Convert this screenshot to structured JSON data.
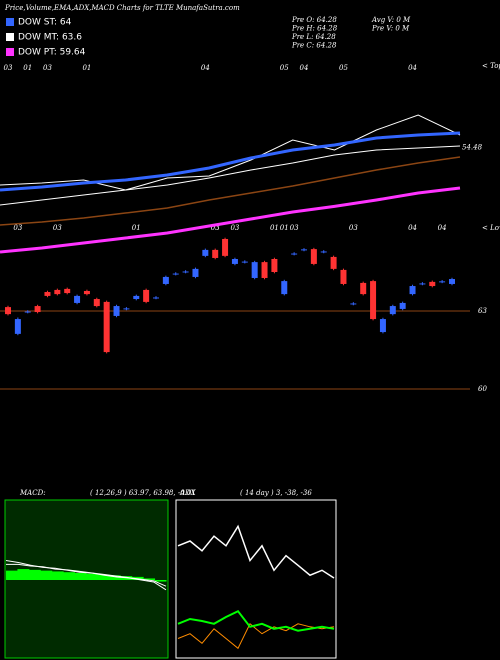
{
  "title": "Price,Volume,EMA,ADX,MACD Charts for TLTE MunafaSutra.com",
  "legend": [
    {
      "label": "DOW ST: 64",
      "color": "#3366ff"
    },
    {
      "label": "DOW MT: 63.6",
      "color": "#ffffff"
    },
    {
      "label": "DOW PT: 59.64",
      "color": "#ff33ff"
    }
  ],
  "info": [
    "Pre  O: 64.28",
    "Pre  H: 64.28",
    "Pre  L: 64.28",
    "Pre  C: 64.28"
  ],
  "info2": [
    "Avg V: 0  M",
    "Pre  V: 0  M"
  ],
  "chart_data": [
    {
      "type": "candlestick",
      "up_color": "#3366ff",
      "down_color": "#ff3333",
      "doji_color": "#ffffff",
      "open": [
        63.15,
        62.12,
        62.96,
        63.19,
        63.73,
        63.81,
        63.85,
        63.31,
        63.77,
        63.46,
        63.35,
        62.81,
        63.08,
        63.46,
        63.81,
        63.5,
        64.04,
        64.42,
        64.5,
        64.31,
        65.12,
        65.35,
        65.77,
        64.81,
        64.88,
        64.27,
        64.88,
        65.0,
        63.65,
        65.19,
        65.35,
        65.38,
        65.27,
        65.08,
        64.58,
        63.27,
        64.08,
        64.15,
        62.19,
        62.88,
        63.08,
        63.65,
        64.04,
        64.12,
        64.12,
        64.04
      ],
      "high": [
        63.2,
        62.75,
        63.03,
        63.24,
        63.78,
        63.86,
        63.9,
        63.63,
        63.82,
        63.51,
        63.4,
        63.24,
        63.15,
        63.63,
        63.86,
        63.57,
        64.36,
        64.49,
        64.57,
        64.67,
        65.4,
        65.4,
        65.82,
        65.05,
        64.95,
        64.93,
        64.93,
        65.05,
        64.2,
        65.26,
        65.42,
        65.43,
        65.34,
        65.13,
        64.63,
        63.34,
        64.13,
        64.2,
        62.74,
        63.24,
        63.36,
        64.01,
        64.11,
        64.17,
        64.19,
        64.28
      ],
      "low": [
        62.83,
        62.07,
        62.91,
        62.91,
        63.53,
        63.6,
        63.64,
        63.26,
        63.6,
        63.14,
        61.37,
        62.76,
        63.03,
        63.41,
        63.3,
        63.45,
        63.99,
        64.37,
        64.45,
        64.26,
        65.07,
        64.99,
        65.07,
        64.76,
        64.83,
        64.22,
        64.22,
        64.45,
        63.6,
        65.14,
        65.3,
        64.76,
        65.22,
        64.57,
        63.99,
        63.22,
        63.6,
        62.64,
        62.14,
        62.83,
        63.03,
        63.6,
        63.99,
        63.91,
        64.07,
        63.99
      ],
      "close": [
        62.88,
        62.69,
        62.98,
        62.96,
        63.58,
        63.65,
        63.69,
        63.58,
        63.65,
        63.19,
        61.42,
        63.19,
        63.1,
        63.58,
        63.35,
        63.52,
        64.31,
        64.44,
        64.52,
        64.62,
        65.35,
        65.04,
        65.12,
        65.0,
        64.9,
        64.88,
        64.27,
        64.5,
        64.15,
        65.21,
        65.37,
        64.81,
        65.29,
        64.62,
        64.04,
        63.29,
        63.65,
        62.69,
        62.69,
        63.19,
        63.31,
        63.96,
        64.06,
        63.96,
        64.14,
        64.23
      ],
      "ylim": [
        57.5,
        66.5
      ],
      "yticks": [
        60,
        63
      ],
      "tops_label": "< Tops",
      "tops": [
        {
          "index": 0,
          "label": "03"
        },
        {
          "index": 2,
          "label": "01"
        },
        {
          "index": 4,
          "label": "03"
        },
        {
          "index": 8,
          "label": "01"
        },
        {
          "index": 20,
          "label": "04"
        },
        {
          "index": 28,
          "label": "05"
        },
        {
          "index": 30,
          "label": "04"
        },
        {
          "index": 34,
          "label": "05"
        },
        {
          "index": 41,
          "label": "04"
        }
      ],
      "lows_label": "< Lows",
      "lows": [
        {
          "index": 1,
          "label": "03"
        },
        {
          "index": 5,
          "label": "03"
        },
        {
          "index": 13,
          "label": "01"
        },
        {
          "index": 21,
          "label": "03"
        },
        {
          "index": 23,
          "label": "03"
        },
        {
          "index": 27,
          "label": "01"
        },
        {
          "index": 28,
          "label": "01"
        },
        {
          "index": 29,
          "label": "03"
        },
        {
          "index": 35,
          "label": "03"
        },
        {
          "index": 41,
          "label": "04"
        },
        {
          "index": 44,
          "label": "04"
        }
      ]
    },
    {
      "type": "line",
      "ylim": [
        46.6,
        60.6
      ],
      "yticks": [
        54.48
      ],
      "series": [
        {
          "color": "#8b4513",
          "width": 1.5,
          "values": [
            49.05,
            49.26,
            49.54,
            49.89,
            50.24,
            50.8,
            51.29,
            51.78,
            52.34,
            52.9,
            53.39,
            53.81
          ]
        },
        {
          "color": "#ff33ff",
          "width": 3,
          "values": [
            47.16,
            47.44,
            47.79,
            48.14,
            48.49,
            48.98,
            49.47,
            49.96,
            50.35,
            50.8,
            51.29,
            51.64
          ]
        },
        {
          "color": "#ffffff",
          "width": 1,
          "values": [
            50.45,
            50.8,
            51.15,
            51.5,
            51.85,
            52.34,
            52.9,
            53.39,
            53.95,
            54.3,
            54.44,
            54.58
          ]
        },
        {
          "color": "#ffffff",
          "width": 1,
          "values": [
            51.85,
            51.99,
            52.2,
            51.5,
            52.34,
            52.48,
            53.6,
            55.0,
            54.3,
            55.7,
            56.75,
            55.35
          ]
        },
        {
          "color": "#3366ff",
          "width": 3,
          "values": [
            51.5,
            51.71,
            51.99,
            52.2,
            52.55,
            53.04,
            53.74,
            54.3,
            54.65,
            55.14,
            55.35,
            55.49
          ]
        }
      ]
    },
    {
      "type": "macd",
      "title": "MACD:",
      "subtitle": "( 12,26,9 ) 63.97, 63.98, -0.01",
      "background": "#002b00",
      "border": "#00cc00",
      "ylim": [
        0,
        100
      ],
      "baseline": 50,
      "histogram": {
        "color": "#00ff00",
        "values": [
          56,
          57,
          56.5,
          56,
          55.5,
          55,
          54.5,
          54,
          53.5,
          53,
          52.5,
          52,
          51,
          49
        ]
      },
      "series": [
        {
          "color": "#ffffff",
          "width": 1,
          "values": [
            62.5,
            61.25,
            59.4,
            58.1,
            57.5,
            56.25,
            55,
            54.4,
            53.1,
            51.9,
            51.25,
            50,
            48.75,
            43.75
          ]
        },
        {
          "color": "#ffffff",
          "width": 1,
          "values": [
            60,
            60,
            59,
            58.5,
            57,
            56.5,
            55.5,
            54.5,
            53.5,
            52.5,
            51.5,
            50.5,
            49.5,
            46
          ]
        }
      ]
    },
    {
      "type": "line",
      "title": "ADX",
      "subtitle": "( 14  day ) 3, -38, -36",
      "background": "#000000",
      "border": "#ffffff",
      "ylim": [
        0,
        100
      ],
      "series": [
        {
          "color": "#ff8c00",
          "width": 1,
          "values": [
            12.5,
            15.6,
            9.4,
            18.75,
            12.5,
            6.25,
            21.9,
            15.6,
            20,
            17.5,
            21.9,
            20,
            18.75,
            20
          ]
        },
        {
          "color": "#00ff00",
          "width": 2,
          "values": [
            21.9,
            25,
            23.75,
            21.9,
            26.25,
            30,
            20,
            21.9,
            18.75,
            20,
            17.5,
            18.75,
            20,
            18.75
          ]
        },
        {
          "color": "#ffffff",
          "width": 1.5,
          "values": [
            71.9,
            75,
            68.75,
            78.1,
            71.9,
            84.4,
            62.5,
            71.9,
            56.25,
            65.6,
            59.4,
            53.1,
            56.25,
            51.25
          ]
        }
      ]
    }
  ]
}
